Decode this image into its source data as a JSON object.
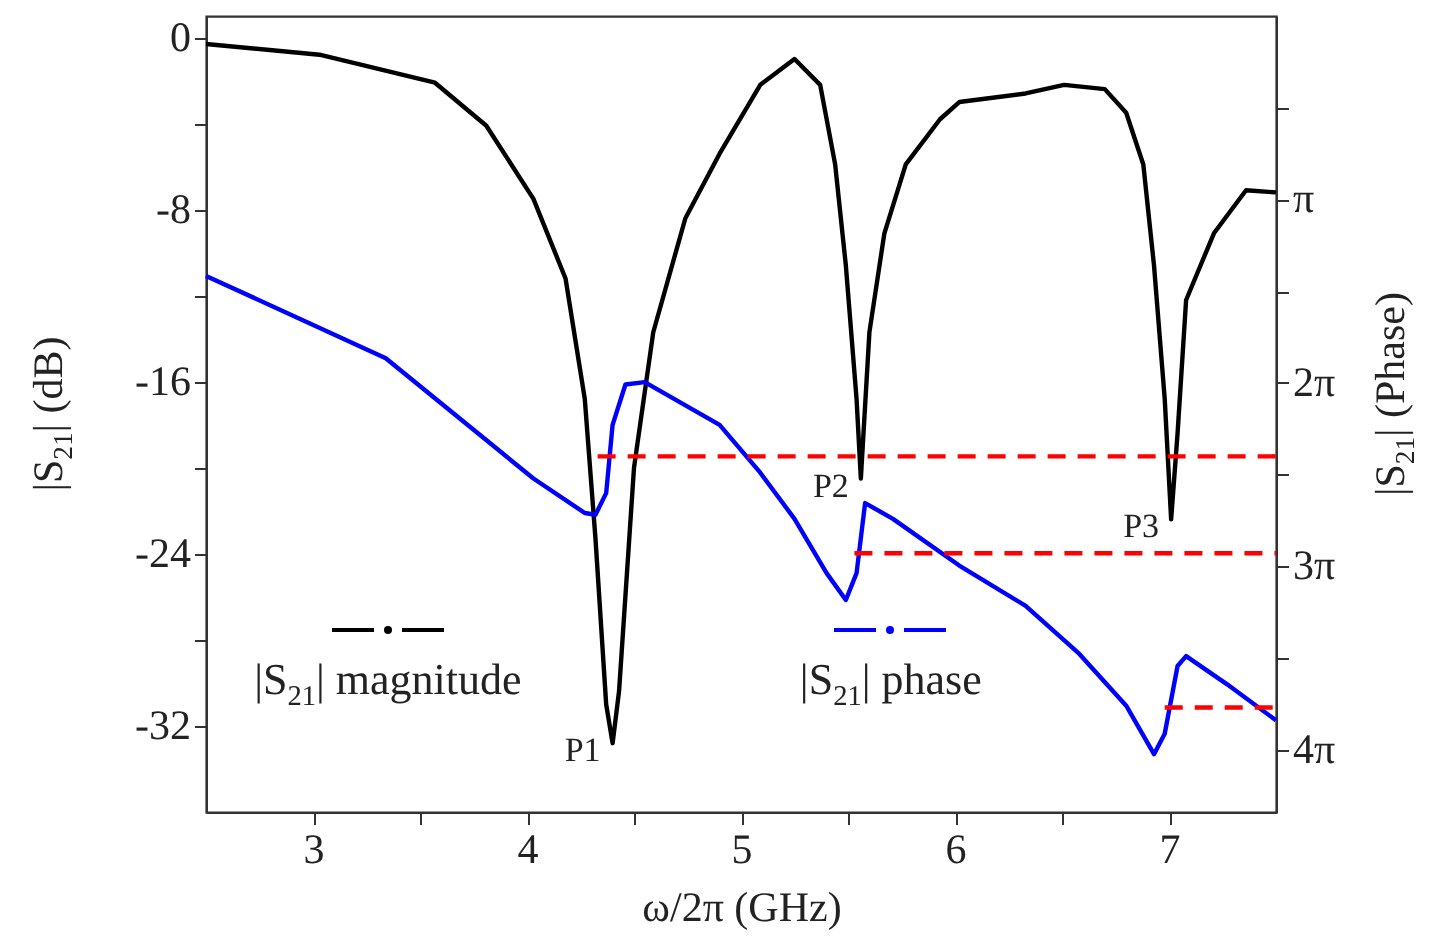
{
  "chart_data": {
    "type": "line",
    "xlabel": "ω/2π (GHz)",
    "ylabel": "|S$_{21}$| (dB)",
    "y2label": "|S$_{21}$| (Phase)",
    "xlim": [
      2.5,
      7.5
    ],
    "xticks": [
      3,
      {
        "value": 3.5,
        "label": null
      },
      4,
      {
        "value": 4.5,
        "label": null
      },
      5,
      {
        "value": 5.5,
        "label": null
      },
      6,
      {
        "value": 6.5,
        "label": null
      },
      7
    ],
    "ylim": [
      -36,
      1
    ],
    "yticks": [
      -32,
      {
        "value": -28,
        "label": null
      },
      -24,
      {
        "value": -20,
        "label": null
      },
      -16,
      {
        "value": -12,
        "label": null
      },
      -8,
      {
        "value": -4,
        "label": null
      },
      0
    ],
    "y2lim": [
      13.63,
      0
    ],
    "y2ticks": [
      {
        "value": 1.57,
        "label": null
      },
      {
        "value": 3.14,
        "label": "π"
      },
      {
        "value": 4.71,
        "label": null
      },
      {
        "value": 6.28,
        "label": "2π"
      },
      {
        "value": 7.85,
        "label": null
      },
      {
        "value": 9.42,
        "label": "3π"
      },
      {
        "value": 11.0,
        "label": null
      },
      {
        "value": 12.57,
        "label": "4π"
      }
    ],
    "grid": false,
    "legend": "bottom",
    "marker": "none",
    "series": [
      {
        "name": "|S$_{21}$| magnitude",
        "color": "#000000",
        "x": [
          2.5,
          3.03,
          3.57,
          3.81,
          4.03,
          4.18,
          4.27,
          4.32,
          4.37,
          4.4,
          4.43,
          4.5,
          4.59,
          4.74,
          4.9,
          5.09,
          5.25,
          5.37,
          5.44,
          5.49,
          5.54,
          5.56,
          5.6,
          5.67,
          5.77,
          5.93,
          6.02,
          6.33,
          6.51,
          6.7,
          6.8,
          6.88,
          6.93,
          6.98,
          7.01,
          7.04,
          7.08,
          7.21,
          7.36,
          7.5
        ],
        "values": [
          -0.3,
          -0.8,
          -2.1,
          -4.1,
          -7.5,
          -11.2,
          -16.8,
          -23.3,
          -31.0,
          -32.8,
          -30.4,
          -20.0,
          -13.7,
          -8.4,
          -5.4,
          -2.2,
          -1.0,
          -2.2,
          -5.9,
          -10.6,
          -16.8,
          -20.5,
          -13.7,
          -9.1,
          -5.9,
          -3.8,
          -3.0,
          -2.6,
          -2.2,
          -2.4,
          -3.5,
          -5.9,
          -10.6,
          -16.8,
          -22.4,
          -18.4,
          -12.2,
          -9.1,
          -7.1,
          -7.2
        ]
      },
      {
        "name": "|S$_{21}$| phase",
        "color": "#0000ff",
        "axis": "y2",
        "x": [
          2.5,
          3.34,
          4.03,
          4.27,
          4.32,
          4.37,
          4.4,
          4.46,
          4.55,
          4.9,
          5.09,
          5.25,
          5.4,
          5.49,
          5.54,
          5.58,
          5.71,
          6.02,
          6.33,
          6.58,
          6.8,
          6.93,
          6.98,
          7.04,
          7.08,
          7.27,
          7.5
        ],
        "values": [
          4.45,
          5.86,
          7.92,
          8.51,
          8.54,
          8.17,
          7.0,
          6.31,
          6.27,
          7.0,
          7.82,
          8.61,
          9.54,
          10.0,
          9.54,
          8.34,
          8.61,
          9.41,
          10.1,
          10.92,
          11.81,
          12.64,
          12.29,
          11.13,
          10.96,
          11.44,
          12.06
        ]
      },
      {
        "type": "line",
        "color": "#ff0000",
        "axis": "y2",
        "line_style": "dashed",
        "x": [
          4.33,
          7.5
        ],
        "values": [
          7.54,
          7.54
        ]
      },
      {
        "type": "line",
        "color": "#ff0000",
        "axis": "y2",
        "line_style": "dashed",
        "x": [
          5.53,
          7.5
        ],
        "values": [
          9.2,
          9.2
        ]
      },
      {
        "type": "line",
        "color": "#ff0000",
        "axis": "y2",
        "line_style": "dashed",
        "x": [
          6.98,
          7.5
        ],
        "values": [
          11.84,
          11.84
        ]
      }
    ],
    "annotations": [
      {
        "text": "P1",
        "x": 4.4,
        "y": -32.8
      },
      {
        "text": "P2",
        "x": 5.56,
        "y": -20.5
      },
      {
        "text": "P3",
        "x": 7.01,
        "y": -22.4
      }
    ]
  }
}
